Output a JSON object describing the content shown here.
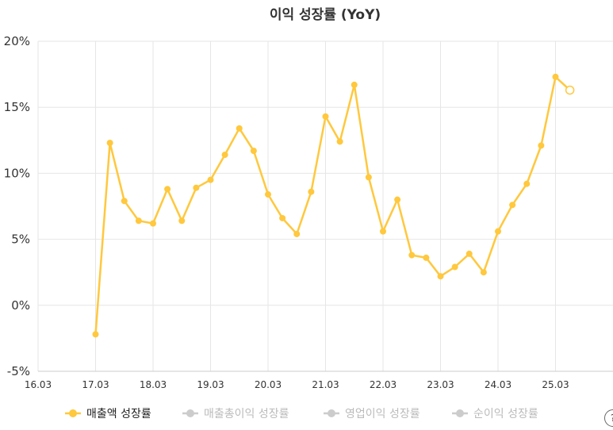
{
  "chart_data": {
    "type": "line",
    "title": "이익 성장률 (YoY)",
    "xlabel": "",
    "ylabel": "",
    "x_ticks": [
      "16.03",
      "17.03",
      "18.03",
      "19.03",
      "20.03",
      "21.03",
      "22.03",
      "23.03",
      "24.03",
      "25.03"
    ],
    "y_ticks": [
      "20%",
      "15%",
      "10%",
      "5%",
      "0%",
      "-5%"
    ],
    "ylim": [
      -5,
      20
    ],
    "grid": true,
    "legend_position": "bottom",
    "series": [
      {
        "name": "매출액 성장률",
        "color": "#FFC83D",
        "active": true,
        "points": [
          {
            "x": "17.03",
            "y": -2.2
          },
          {
            "x": "17.06",
            "y": 12.3
          },
          {
            "x": "17.09",
            "y": 7.9
          },
          {
            "x": "17.12",
            "y": 6.4
          },
          {
            "x": "18.03",
            "y": 6.2
          },
          {
            "x": "18.06",
            "y": 8.8
          },
          {
            "x": "18.09",
            "y": 6.4
          },
          {
            "x": "18.12",
            "y": 8.9
          },
          {
            "x": "19.03",
            "y": 9.5
          },
          {
            "x": "19.06",
            "y": 11.4
          },
          {
            "x": "19.09",
            "y": 13.4
          },
          {
            "x": "19.12",
            "y": 11.7
          },
          {
            "x": "20.03",
            "y": 8.4
          },
          {
            "x": "20.06",
            "y": 6.6
          },
          {
            "x": "20.09",
            "y": 5.4
          },
          {
            "x": "20.12",
            "y": 8.6
          },
          {
            "x": "21.03",
            "y": 14.3
          },
          {
            "x": "21.06",
            "y": 12.4
          },
          {
            "x": "21.09",
            "y": 16.7
          },
          {
            "x": "21.12",
            "y": 9.7
          },
          {
            "x": "22.03",
            "y": 5.6
          },
          {
            "x": "22.06",
            "y": 8.0
          },
          {
            "x": "22.09",
            "y": 3.8
          },
          {
            "x": "22.12",
            "y": 3.6
          },
          {
            "x": "23.03",
            "y": 2.2
          },
          {
            "x": "23.06",
            "y": 2.9
          },
          {
            "x": "23.09",
            "y": 3.9
          },
          {
            "x": "23.12",
            "y": 2.5
          },
          {
            "x": "24.03",
            "y": 5.6
          },
          {
            "x": "24.06",
            "y": 7.6
          },
          {
            "x": "24.09",
            "y": 9.2
          },
          {
            "x": "24.12",
            "y": 12.1
          },
          {
            "x": "25.03",
            "y": 17.3
          },
          {
            "x": "25.06",
            "y": 16.3,
            "hollow": true
          }
        ]
      },
      {
        "name": "매출총이익 성장률",
        "color": "#CCCCCC",
        "active": false,
        "points": []
      },
      {
        "name": "영업이익 성장률",
        "color": "#CCCCCC",
        "active": false,
        "points": []
      },
      {
        "name": "순이익 성장률",
        "color": "#CCCCCC",
        "active": false,
        "points": []
      }
    ]
  },
  "ui": {
    "help_icon": "question-icon",
    "help_glyph": "?"
  }
}
